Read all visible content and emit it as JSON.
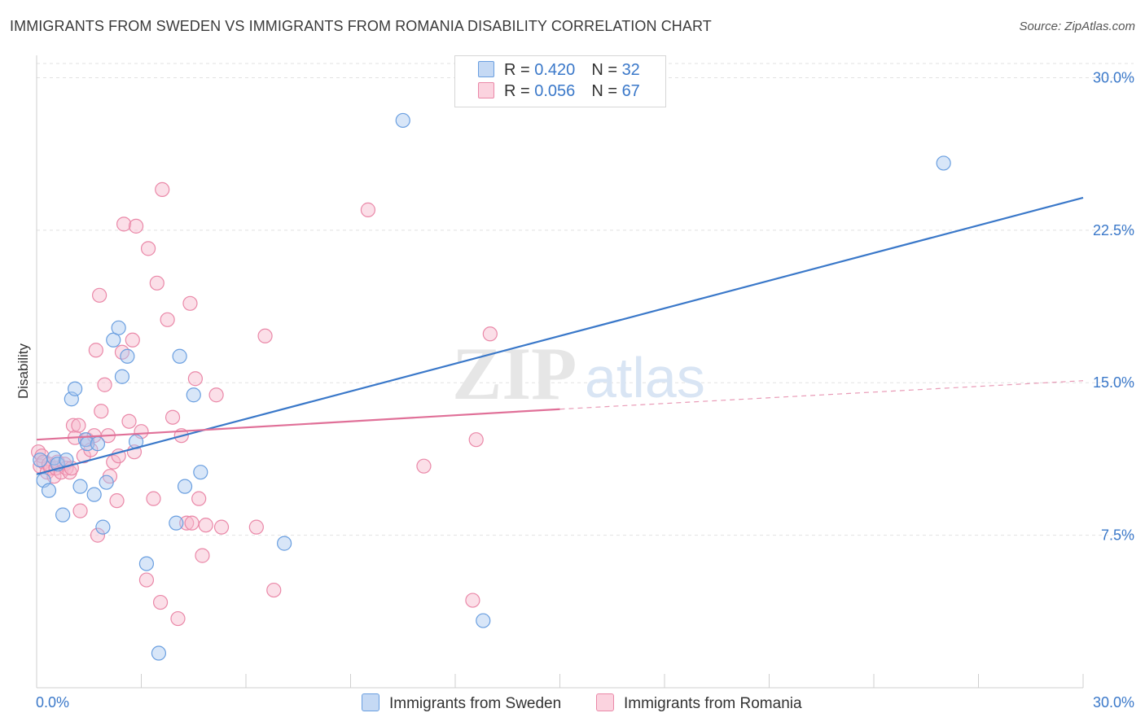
{
  "header": {
    "title": "IMMIGRANTS FROM SWEDEN VS IMMIGRANTS FROM ROMANIA DISABILITY CORRELATION CHART",
    "source": "Source: ZipAtlas.com"
  },
  "watermark": {
    "zip": "ZIP",
    "atlas": "atlas"
  },
  "legend_top": {
    "sweden": {
      "r_label": "R = ",
      "r_value": "0.420",
      "n_label": "N = ",
      "n_value": "32"
    },
    "romania": {
      "r_label": "R = ",
      "r_value": "0.056",
      "n_label": "N = ",
      "n_value": "67"
    }
  },
  "legend_bottom": {
    "sweden": "Immigrants from Sweden",
    "romania": "Immigrants from Romania"
  },
  "colors": {
    "sweden_fill": "#a9c8f0",
    "sweden_stroke": "#6a9fe0",
    "sweden_line": "#3a78c9",
    "romania_fill": "#f6b8cb",
    "romania_stroke": "#ea88a8",
    "romania_line": "#e07098",
    "tick_text": "#3a78c9",
    "grid": "#e2e2e2"
  },
  "chart_data": {
    "type": "scatter",
    "title": "IMMIGRANTS FROM SWEDEN VS IMMIGRANTS FROM ROMANIA DISABILITY CORRELATION CHART",
    "xlabel": "",
    "ylabel": "Disability",
    "xlim": [
      0,
      30
    ],
    "ylim": [
      0,
      30.7
    ],
    "x_tick_labels": [
      "0.0%",
      "30.0%"
    ],
    "y_ticks": [
      7.5,
      15.0,
      22.5,
      30.0
    ],
    "y_tick_labels": [
      "7.5%",
      "15.0%",
      "22.5%",
      "30.0%"
    ],
    "grid": true,
    "legend_position": "top-center",
    "series": [
      {
        "name": "Immigrants from Sweden",
        "R": 0.42,
        "N": 32,
        "points": [
          [
            0.1,
            11.2
          ],
          [
            0.2,
            10.2
          ],
          [
            0.35,
            9.7
          ],
          [
            0.5,
            11.3
          ],
          [
            0.6,
            11.0
          ],
          [
            0.75,
            8.5
          ],
          [
            0.85,
            11.2
          ],
          [
            1.0,
            14.2
          ],
          [
            1.1,
            14.7
          ],
          [
            1.25,
            9.9
          ],
          [
            1.4,
            12.2
          ],
          [
            1.45,
            12.0
          ],
          [
            1.65,
            9.5
          ],
          [
            1.75,
            12.0
          ],
          [
            1.9,
            7.9
          ],
          [
            2.0,
            10.1
          ],
          [
            2.2,
            17.1
          ],
          [
            2.35,
            17.7
          ],
          [
            2.45,
            15.3
          ],
          [
            2.6,
            16.3
          ],
          [
            2.85,
            12.1
          ],
          [
            3.15,
            6.1
          ],
          [
            3.5,
            1.7
          ],
          [
            4.0,
            8.1
          ],
          [
            4.1,
            16.3
          ],
          [
            4.25,
            9.9
          ],
          [
            4.5,
            14.4
          ],
          [
            4.7,
            10.6
          ],
          [
            7.1,
            7.1
          ],
          [
            10.5,
            27.9
          ],
          [
            12.8,
            3.3
          ],
          [
            26.0,
            25.8
          ]
        ],
        "trend": {
          "x": [
            0,
            30
          ],
          "y": [
            10.5,
            24.1
          ],
          "style": "solid"
        }
      },
      {
        "name": "Immigrants from Romania",
        "R": 0.056,
        "N": 67,
        "points": [
          [
            0.05,
            11.6
          ],
          [
            0.1,
            10.9
          ],
          [
            0.15,
            11.4
          ],
          [
            0.2,
            11.1
          ],
          [
            0.3,
            10.6
          ],
          [
            0.35,
            11.0
          ],
          [
            0.4,
            10.8
          ],
          [
            0.5,
            10.4
          ],
          [
            0.55,
            10.8
          ],
          [
            0.6,
            11.1
          ],
          [
            0.7,
            10.6
          ],
          [
            0.8,
            11.0
          ],
          [
            0.85,
            10.8
          ],
          [
            0.95,
            10.6
          ],
          [
            1.0,
            10.8
          ],
          [
            1.05,
            12.9
          ],
          [
            1.1,
            12.3
          ],
          [
            1.2,
            12.9
          ],
          [
            1.25,
            8.7
          ],
          [
            1.35,
            11.4
          ],
          [
            1.45,
            12.2
          ],
          [
            1.55,
            11.7
          ],
          [
            1.65,
            12.4
          ],
          [
            1.7,
            16.6
          ],
          [
            1.75,
            7.5
          ],
          [
            1.8,
            19.3
          ],
          [
            1.85,
            13.6
          ],
          [
            1.95,
            14.9
          ],
          [
            2.05,
            12.4
          ],
          [
            2.1,
            10.4
          ],
          [
            2.2,
            11.1
          ],
          [
            2.3,
            9.2
          ],
          [
            2.35,
            11.4
          ],
          [
            2.45,
            16.5
          ],
          [
            2.5,
            22.8
          ],
          [
            2.65,
            13.1
          ],
          [
            2.75,
            17.1
          ],
          [
            2.8,
            11.6
          ],
          [
            2.85,
            22.7
          ],
          [
            3.0,
            12.6
          ],
          [
            3.15,
            5.3
          ],
          [
            3.2,
            21.6
          ],
          [
            3.35,
            9.3
          ],
          [
            3.45,
            19.9
          ],
          [
            3.55,
            4.2
          ],
          [
            3.6,
            24.5
          ],
          [
            3.75,
            18.1
          ],
          [
            3.9,
            13.3
          ],
          [
            4.05,
            3.4
          ],
          [
            4.15,
            12.4
          ],
          [
            4.3,
            8.1
          ],
          [
            4.4,
            18.9
          ],
          [
            4.45,
            8.1
          ],
          [
            4.55,
            15.2
          ],
          [
            4.65,
            9.3
          ],
          [
            4.75,
            6.5
          ],
          [
            4.85,
            8.0
          ],
          [
            5.15,
            14.4
          ],
          [
            5.3,
            7.9
          ],
          [
            6.3,
            7.9
          ],
          [
            6.55,
            17.3
          ],
          [
            6.8,
            4.8
          ],
          [
            9.5,
            23.5
          ],
          [
            12.5,
            4.3
          ],
          [
            12.6,
            12.2
          ],
          [
            13.0,
            17.4
          ],
          [
            11.1,
            10.9
          ]
        ],
        "trend": {
          "x": [
            0,
            15
          ],
          "y": [
            12.2,
            13.7
          ],
          "style": "solid"
        },
        "trend_extension": {
          "x": [
            15,
            30
          ],
          "y": [
            13.7,
            15.1
          ],
          "style": "dashed"
        }
      }
    ]
  }
}
